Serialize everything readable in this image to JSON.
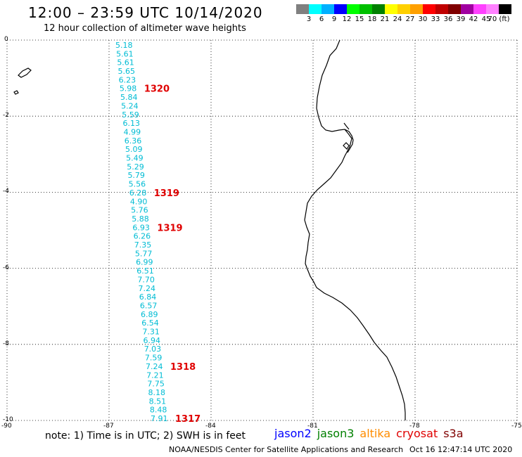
{
  "header": {
    "title": "12:00 – 23:59 UTC 10/14/2020",
    "subtitle": "12 hour collection of altimeter wave heights"
  },
  "colorbar": {
    "colors": [
      "#808080",
      "#00ffff",
      "#00b0ff",
      "#0000ff",
      "#00ff00",
      "#00c000",
      "#008000",
      "#ffff00",
      "#ffd000",
      "#ffa000",
      "#ff0000",
      "#c00000",
      "#800000",
      "#a000a0",
      "#ff40ff",
      "#ff80ff",
      "#000000"
    ],
    "labels": [
      "3",
      "6",
      "9",
      "12",
      "15",
      "18",
      "21",
      "24",
      "27",
      "30",
      "33",
      "36",
      "39",
      "42",
      "45",
      "70 (ft)"
    ]
  },
  "map": {
    "lon_range": [
      -90,
      -75
    ],
    "lat_range": [
      -10,
      0
    ],
    "x_ticks": [
      "-90",
      "-87",
      "-84",
      "-81",
      "-78",
      "-75"
    ],
    "y_ticks": [
      "0",
      "-2",
      "-4",
      "-6",
      "-8",
      "-10"
    ],
    "track_color": "#00bcd4",
    "label_color": "#e00000",
    "swh_values": [
      "5.18",
      "5.61",
      "5.61",
      "5.65",
      "6.23",
      "5.98",
      "5.84",
      "5.24",
      "5.59",
      "6.13",
      "4.99",
      "6.36",
      "5.09",
      "5.49",
      "5.29",
      "5.79",
      "5.56",
      "6.28",
      "4.90",
      "5.76",
      "5.88",
      "6.93",
      "6.26",
      "7.35",
      "5.77",
      "6.99",
      "6.51",
      "7.70",
      "7.24",
      "6.84",
      "6.57",
      "6.89",
      "6.54",
      "7.31",
      "6.94",
      "7.03",
      "7.59",
      "7.24",
      "7.21",
      "7.75",
      "8.18",
      "8.51",
      "8.48",
      "7.91"
    ],
    "time_labels": [
      {
        "text": "1320",
        "index": 5
      },
      {
        "text": "1319",
        "index": 17
      },
      {
        "text": "1319",
        "index": 21
      },
      {
        "text": "1318",
        "index": 37
      },
      {
        "text": "1317",
        "index": 43
      }
    ]
  },
  "note": "note: 1) Time is in UTC; 2) SWH is in feet",
  "legend": [
    {
      "name": "jason2",
      "color": "#0000ff"
    },
    {
      "name": "jason3",
      "color": "#008000"
    },
    {
      "name": "altika",
      "color": "#ff8c00"
    },
    {
      "name": "cryosat",
      "color": "#e00000"
    },
    {
      "name": "s3a",
      "color": "#800000"
    }
  ],
  "footer": {
    "left": "NOAA/NESDIS Center for Satellite Applications and Research",
    "right": "Oct 16 12:47:14 UTC 2020"
  }
}
